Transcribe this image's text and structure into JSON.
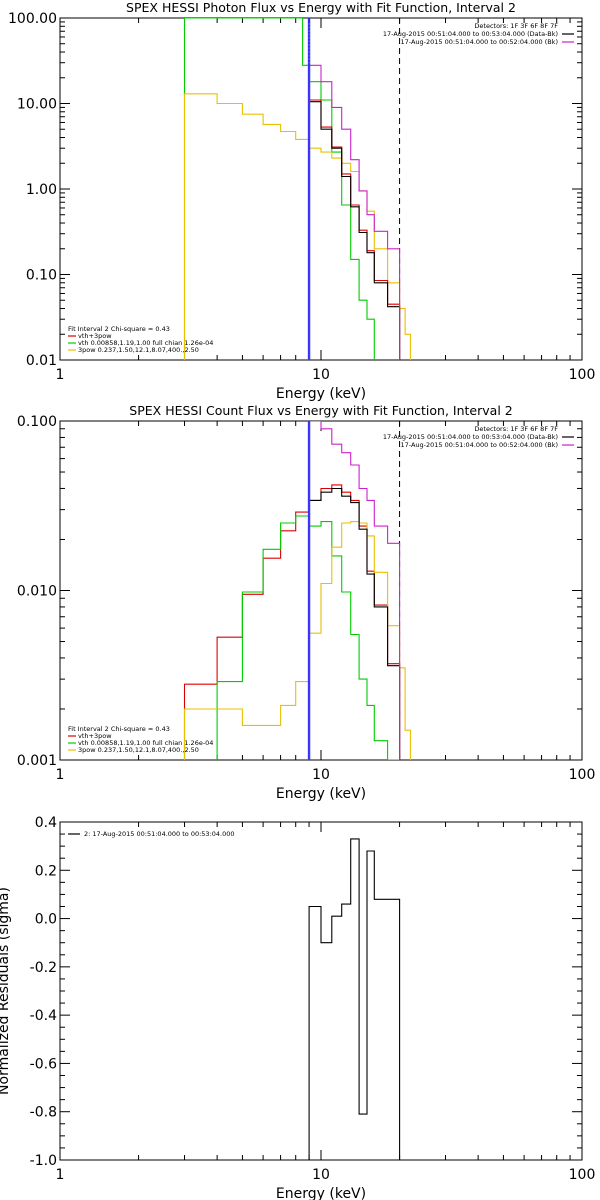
{
  "chart_data": [
    {
      "type": "line",
      "title": "SPEX HESSI Photon Flux vs Energy with Fit Function, Interval 2",
      "xlabel": "Energy (keV)",
      "ylabel": "",
      "xscale": "log",
      "yscale": "log",
      "xlim": [
        1,
        100
      ],
      "ylim": [
        0.01,
        100
      ],
      "xticks": [
        "1",
        "10",
        "100"
      ],
      "yticks": [
        "0.01",
        "0.10",
        "1.00",
        "10.00",
        "100.00"
      ],
      "ytick_values": [
        0.01,
        0.1,
        1,
        10,
        100
      ],
      "vlines": [
        {
          "x": 9,
          "style": "dotted",
          "color": "#000000"
        },
        {
          "x": 20,
          "style": "dashed",
          "color": "#000000"
        }
      ],
      "legend_topright": [
        {
          "text": "Detectors: 1F 3F 6F 8F 7F",
          "color": "#000000"
        },
        {
          "text": "17-Aug-2015 00:51:04.000 to 00:53:04.000 (Data-Bk)",
          "color": "#000000"
        },
        {
          "text": "17-Aug-2015 00:51:04.000 to 00:52:04.000 (Bk)",
          "color": "#cc22cc"
        }
      ],
      "legend_bottomleft": [
        {
          "text": "Fit Interval 2   Chi-square = 0.43",
          "color": "#000000"
        },
        {
          "text": "vth+3pow",
          "color": "#dd0000"
        },
        {
          "text": "vth 0.00858,1.19,1.00  full chian 1.26e-04",
          "color": "#00cc00"
        },
        {
          "text": "3pow 0.237,1.50,12.1,8.07,400.,2.50",
          "color": "#e8c000"
        }
      ],
      "series": [
        {
          "color": "#00cc00",
          "edges": [
            3.0,
            7.8,
            8.5,
            9.0,
            10.0,
            11.0,
            12.0,
            13.0,
            14.0,
            15.0,
            16.0
          ],
          "values": [
            100,
            100,
            28,
            18,
            11,
            2.7,
            0.65,
            0.15,
            0.05,
            0.03,
            0.01
          ]
        },
        {
          "color": "#e8c000",
          "edges": [
            3.0,
            4.0,
            5.0,
            6.0,
            7.0,
            8.0,
            9.0,
            10.0,
            11.0,
            12.0,
            13.0,
            14.0,
            15.0,
            16.0,
            18.0,
            20.0,
            21.0,
            22.0
          ],
          "values": [
            13,
            10,
            7.5,
            5.7,
            4.7,
            3.8,
            3.0,
            2.7,
            2.3,
            2.0,
            1.6,
            0.95,
            0.55,
            0.2,
            0.08,
            0.04,
            0.02,
            0.015
          ]
        },
        {
          "color": "#dd0000",
          "edges": [
            9.0,
            10.0,
            11.0,
            12.0,
            13.0,
            14.0,
            15.0,
            16.0,
            18.0,
            20.0
          ],
          "values": [
            11,
            5.3,
            3.1,
            1.5,
            0.65,
            0.33,
            0.19,
            0.085,
            0.045,
            0.01
          ]
        },
        {
          "color": "#000000",
          "edges": [
            9.0,
            10.0,
            11.0,
            12.0,
            13.0,
            14.0,
            15.0,
            16.0,
            18.0,
            20.0
          ],
          "values": [
            10.5,
            5.0,
            3.0,
            1.4,
            0.62,
            0.31,
            0.18,
            0.08,
            0.042,
            0.01
          ]
        },
        {
          "color": "#cc22cc",
          "edges": [
            9.0,
            10.0,
            11.0,
            12.0,
            13.0,
            14.0,
            15.0,
            16.0,
            18.0,
            20.0
          ],
          "values": [
            28,
            18,
            9,
            5,
            2.2,
            0.95,
            0.5,
            0.32,
            0.2,
            0.01
          ]
        },
        {
          "color": "#3333ff",
          "edges": [
            8.95,
            9.05
          ],
          "values": [
            100,
            0.01
          ]
        }
      ]
    },
    {
      "type": "line",
      "title": "SPEX HESSI Count Flux vs Energy with Fit Function, Interval 2",
      "xlabel": "Energy (keV)",
      "ylabel": "",
      "xscale": "log",
      "yscale": "log",
      "xlim": [
        1,
        100
      ],
      "ylim": [
        0.001,
        0.1
      ],
      "xticks": [
        "1",
        "10",
        "100"
      ],
      "yticks": [
        "0.001",
        "0.010",
        "0.100"
      ],
      "ytick_values": [
        0.001,
        0.01,
        0.1
      ],
      "vlines": [
        {
          "x": 9,
          "style": "dotted",
          "color": "#000000"
        },
        {
          "x": 20,
          "style": "dashed",
          "color": "#000000"
        }
      ],
      "legend_topright": [
        {
          "text": "Detectors: 1F 3F 6F 8F 7F",
          "color": "#000000"
        },
        {
          "text": "17-Aug-2015 00:51:04.000 to 00:53:04.000 (Data-Bk)",
          "color": "#000000"
        },
        {
          "text": "17-Aug-2015 00:51:04.000 to 00:52:04.000 (Bk)",
          "color": "#cc22cc"
        }
      ],
      "legend_bottomleft": [
        {
          "text": "Fit Interval 2   Chi-square = 0.43",
          "color": "#000000"
        },
        {
          "text": "vth+3pow",
          "color": "#dd0000"
        },
        {
          "text": "vth 0.00858,1.19,1.00  full chian 1.26e-04",
          "color": "#00cc00"
        },
        {
          "text": "3pow 0.237,1.50,12.1,8.07,400.,2.50",
          "color": "#e8c000"
        }
      ],
      "series": [
        {
          "color": "#dd0000",
          "edges": [
            3.0,
            4.0,
            5.0,
            6.0,
            7.0,
            8.0,
            9.0,
            10.0,
            11.0,
            12.0,
            13.0,
            14.0,
            15.0,
            16.0,
            18.0,
            20.0
          ],
          "values": [
            0.0028,
            0.0053,
            0.0095,
            0.0155,
            0.0225,
            0.029,
            0.034,
            0.04,
            0.042,
            0.038,
            0.034,
            0.024,
            0.013,
            0.0082,
            0.0037,
            0.001
          ]
        },
        {
          "color": "#00cc00",
          "edges": [
            4.0,
            5.0,
            6.0,
            7.0,
            8.0,
            9.0,
            10.0,
            11.0,
            12.0,
            13.0,
            14.0,
            15.0,
            16.0,
            18.0,
            20.0
          ],
          "values": [
            0.0029,
            0.0098,
            0.0175,
            0.025,
            0.0275,
            0.024,
            0.0255,
            0.016,
            0.0098,
            0.0055,
            0.003,
            0.0021,
            0.0013,
            0.001,
            0.001
          ]
        },
        {
          "color": "#e8c000",
          "edges": [
            3.0,
            4.0,
            5.0,
            6.0,
            7.0,
            8.0,
            9.0,
            10.0,
            11.0,
            12.0,
            13.0,
            14.0,
            15.0,
            16.0,
            18.0,
            20.0,
            21.0,
            22.0
          ],
          "values": [
            0.002,
            0.002,
            0.0016,
            0.0016,
            0.0021,
            0.0029,
            0.0056,
            0.011,
            0.018,
            0.025,
            0.0255,
            0.025,
            0.021,
            0.0128,
            0.0062,
            0.0035,
            0.0015,
            0.001
          ]
        },
        {
          "color": "#000000",
          "edges": [
            9.0,
            10.0,
            11.0,
            12.0,
            13.0,
            14.0,
            15.0,
            16.0,
            18.0,
            20.0
          ],
          "values": [
            0.034,
            0.038,
            0.04,
            0.036,
            0.033,
            0.023,
            0.0125,
            0.008,
            0.0036,
            0.001
          ]
        },
        {
          "color": "#cc22cc",
          "edges": [
            9.0,
            10.0,
            11.0,
            12.0,
            13.0,
            14.0,
            15.0,
            16.0,
            18.0,
            20.0
          ],
          "values": [
            0.1,
            0.09,
            0.073,
            0.065,
            0.055,
            0.04,
            0.034,
            0.024,
            0.019,
            0.001
          ]
        },
        {
          "color": "#3333ff",
          "edges": [
            8.95,
            9.05
          ],
          "values": [
            0.1,
            0.001
          ]
        }
      ]
    },
    {
      "type": "line",
      "title": "",
      "xlabel": "Energy (keV)",
      "ylabel": "Normalized Residuals (sigma)",
      "xscale": "log",
      "yscale": "linear",
      "xlim": [
        1,
        100
      ],
      "ylim": [
        -1.0,
        0.4
      ],
      "xticks": [
        "1",
        "10",
        "100"
      ],
      "yticks": [
        "-1.0",
        "-0.8",
        "-0.6",
        "-0.4",
        "-0.2",
        "0.0",
        "0.2",
        "0.4"
      ],
      "ytick_values": [
        -1.0,
        -0.8,
        -0.6,
        -0.4,
        -0.2,
        0.0,
        0.2,
        0.4
      ],
      "vlines": [],
      "legend_topright": [],
      "legend_topleft": [
        {
          "text": "2: 17-Aug-2015 00:51:04.000 to 00:53:04.000",
          "color": "#000000"
        }
      ],
      "legend_bottomleft": [],
      "series": [
        {
          "color": "#000000",
          "edges": [
            9.0,
            10.0,
            11.0,
            12.0,
            13.0,
            14.0,
            15.0,
            16.0,
            18.0,
            20.0
          ],
          "values": [
            0.05,
            -0.1,
            0.01,
            0.06,
            0.33,
            -0.81,
            0.28,
            0.08,
            0.08
          ]
        }
      ]
    }
  ]
}
